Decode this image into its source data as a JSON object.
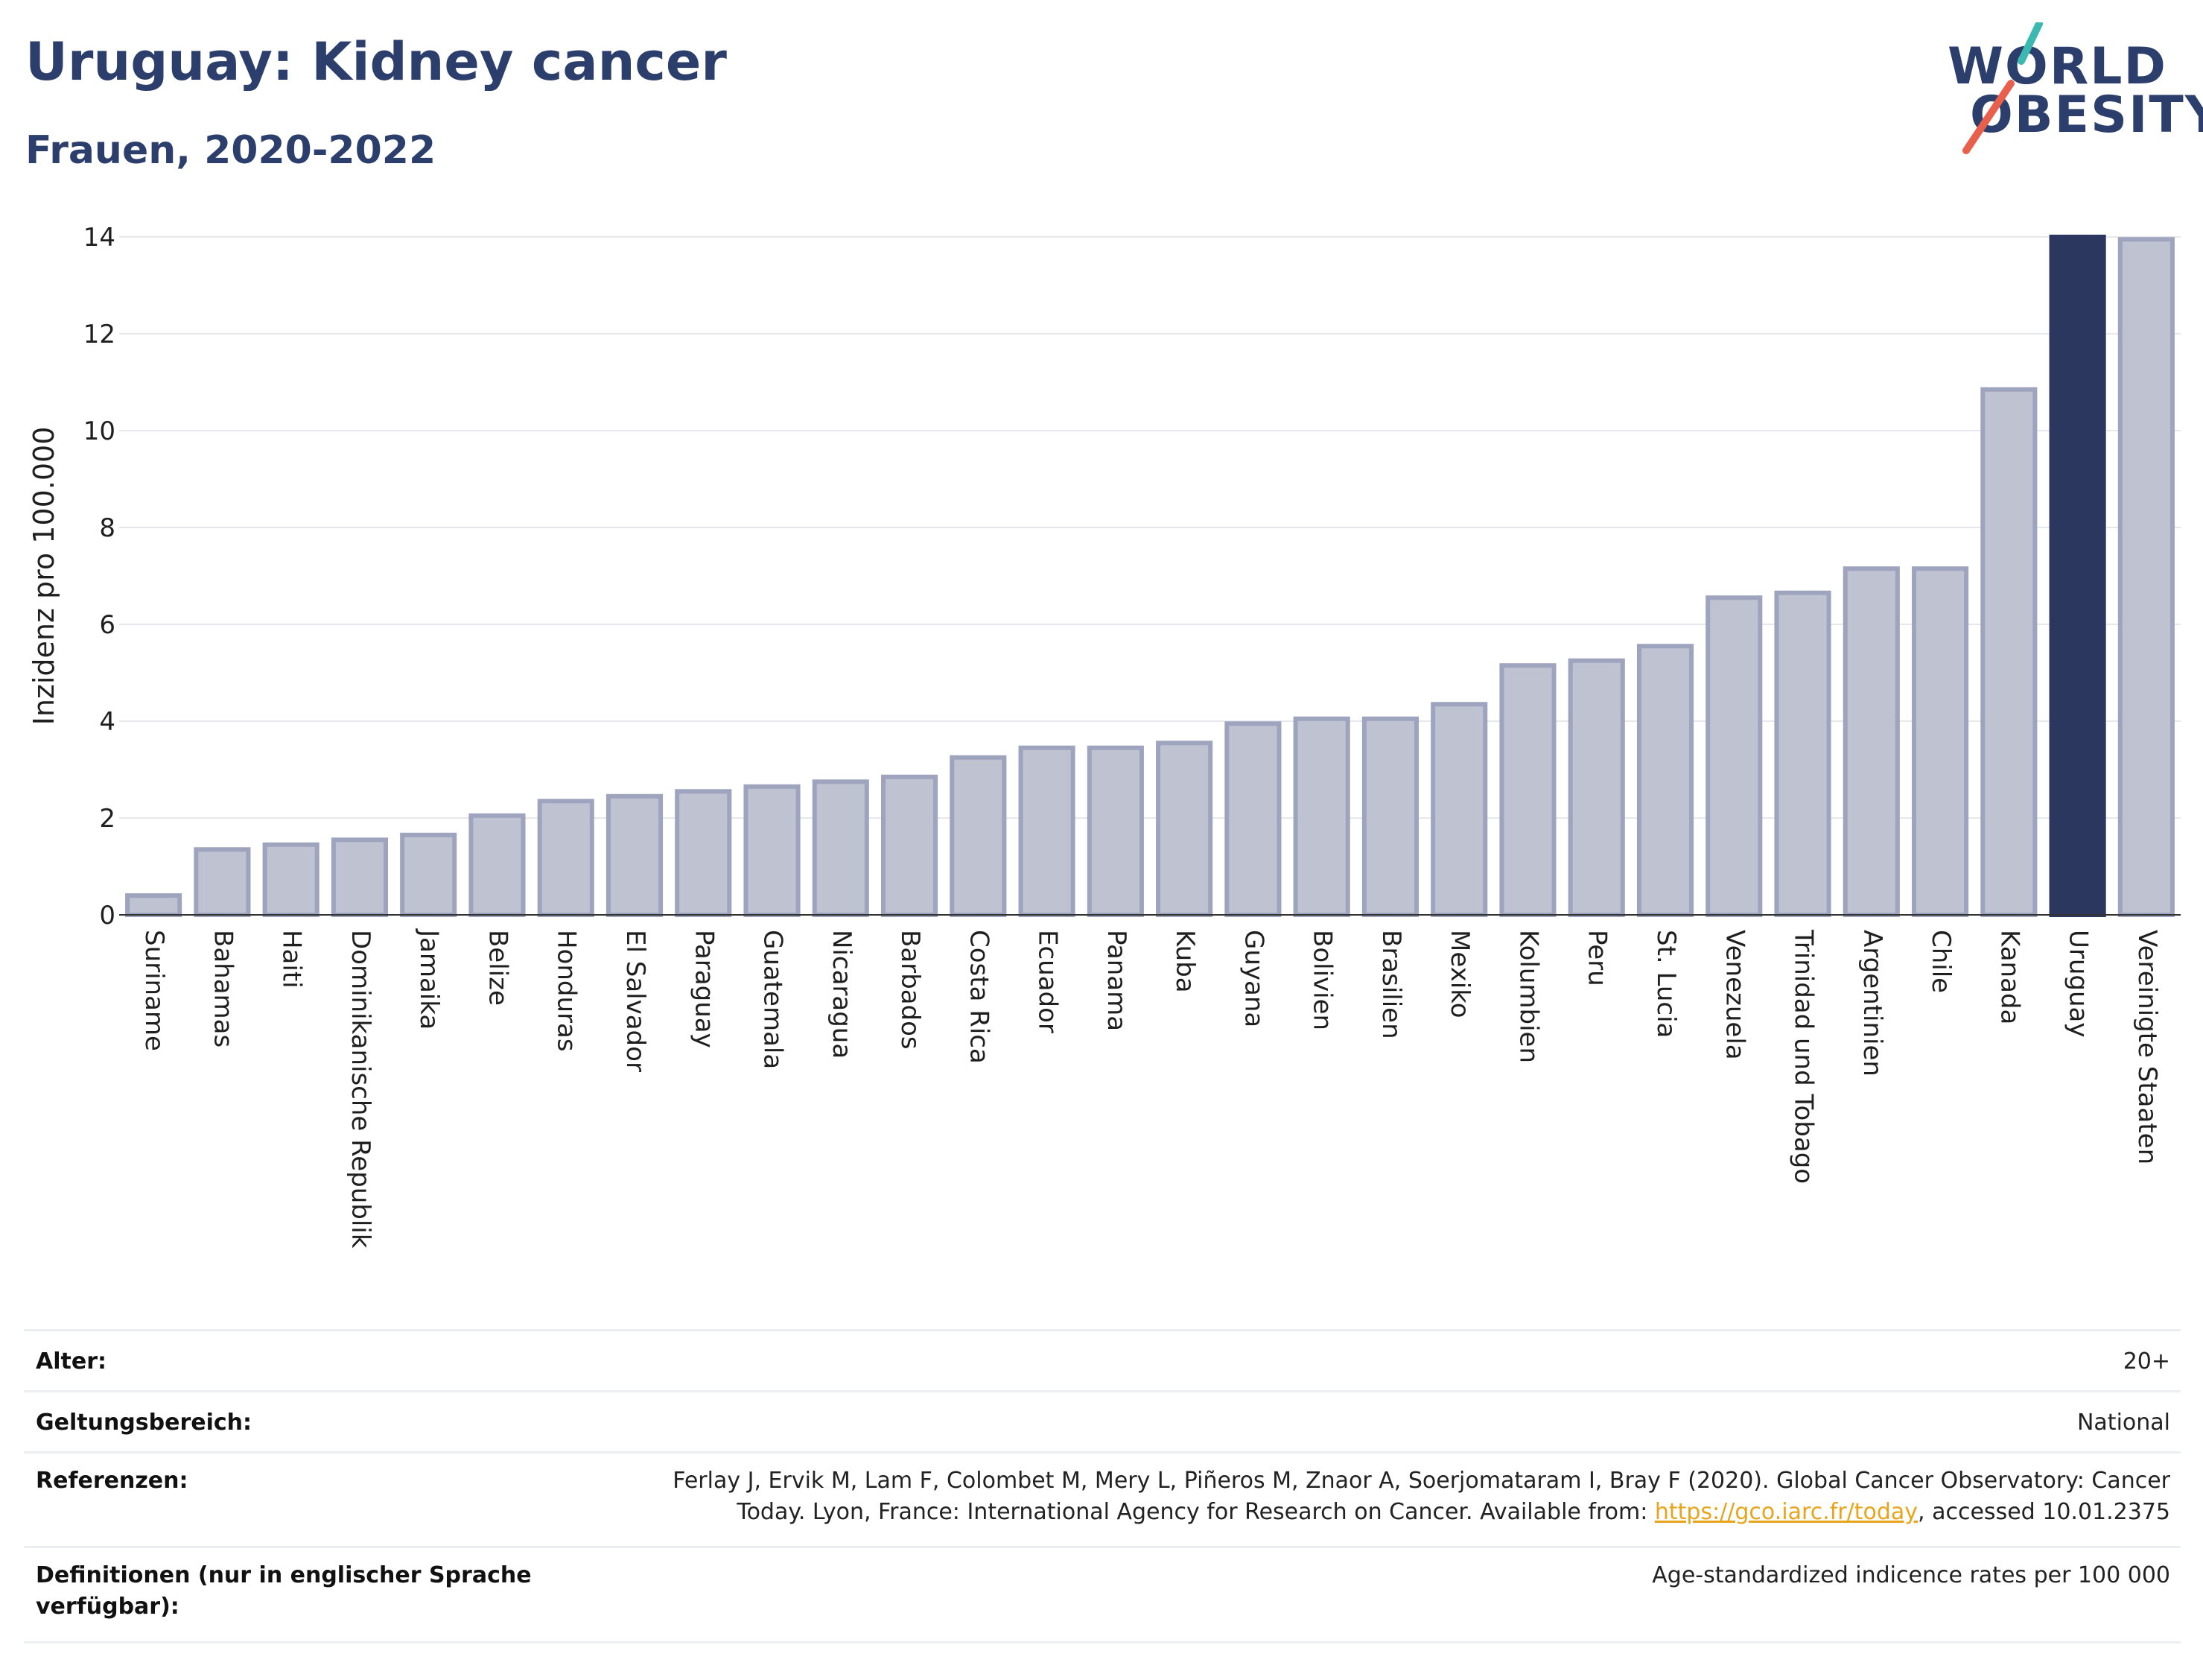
{
  "header": {
    "title": "Uruguay: Kidney cancer",
    "subtitle": "Frauen, 2020-2022"
  },
  "logo": {
    "line1": "WORLD",
    "line2": "OBESITY",
    "slash_color_top": "#3bb8b0",
    "slash_color_bottom": "#e8604c"
  },
  "colors": {
    "bar_default": "#bec2d1",
    "bar_border": "#9ea4bd",
    "bar_highlight": "#2c375f",
    "text_dark": "#2c3e6b",
    "link": "#e8a51c"
  },
  "chart_data": {
    "type": "bar",
    "ylabel": "Inzidenz pro 100.000",
    "ylim": [
      0,
      14
    ],
    "yticks": [
      0,
      2,
      4,
      6,
      8,
      10,
      12,
      14
    ],
    "grid": true,
    "highlight": "Uruguay",
    "categories": [
      "Suriname",
      "Bahamas",
      "Haiti",
      "Dominikanische Republik",
      "Jamaika",
      "Belize",
      "Honduras",
      "El Salvador",
      "Paraguay",
      "Guatemala",
      "Nicaragua",
      "Barbados",
      "Costa Rica",
      "Ecuador",
      "Panama",
      "Kuba",
      "Guyana",
      "Bolivien",
      "Brasilien",
      "Mexiko",
      "Kolumbien",
      "Peru",
      "St. Lucia",
      "Venezuela",
      "Trinidad und Tobago",
      "Argentinien",
      "Chile",
      "Kanada",
      "Uruguay",
      "Vereinigte Staaten"
    ],
    "values": [
      0.4,
      1.35,
      1.45,
      1.55,
      1.65,
      2.05,
      2.35,
      2.45,
      2.55,
      2.65,
      2.75,
      2.85,
      3.25,
      3.45,
      3.45,
      3.55,
      3.95,
      4.05,
      4.05,
      4.35,
      5.15,
      5.25,
      5.55,
      6.55,
      6.65,
      7.15,
      7.15,
      10.85,
      14.0,
      13.95
    ]
  },
  "metadata": {
    "age_label": "Alter:",
    "age_value": "20+",
    "scope_label": "Geltungsbereich:",
    "scope_value": "National",
    "references_label": "Referenzen:",
    "references_line1": "Ferlay J, Ervik M, Lam F, Colombet M, Mery L, Piñeros M, Znaor A, Soerjomataram I, Bray F (2020). Global Cancer Observatory: Cancer",
    "references_line2_prefix": "Today. Lyon, France: International Agency for Research on Cancer. Available from: ",
    "references_link": "https://gco.iarc.fr/today",
    "references_line2_suffix": ", accessed 10.01.2375",
    "definitions_label_line1": "Definitionen (nur in englischer Sprache",
    "definitions_label_line2": "verfügbar):",
    "definitions_value": "Age-standardized indicence rates per 100 000"
  }
}
